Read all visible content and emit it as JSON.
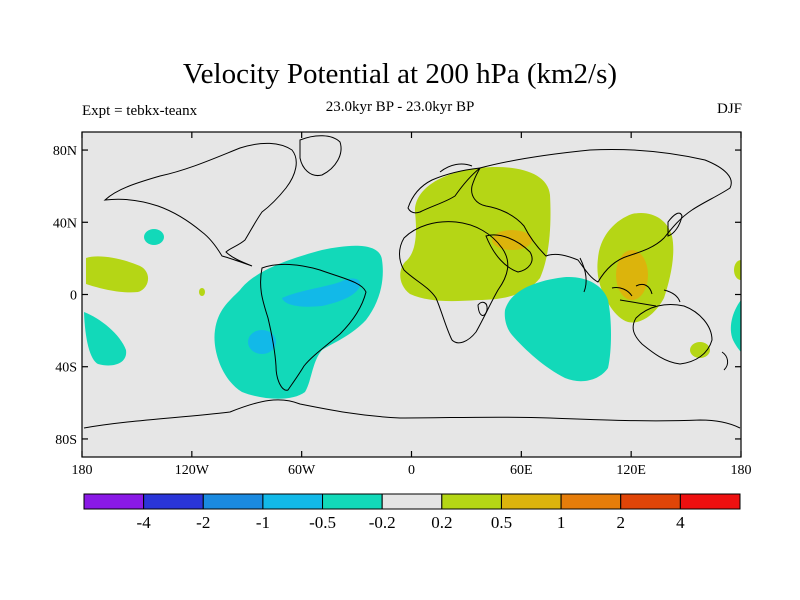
{
  "title": "Velocity Potential at 200 hPa (km2/s)",
  "subtitle_center": "23.0kyr BP - 23.0kyr BP",
  "subtitle_left": "Expt = tebkx-teanx",
  "subtitle_right": "DJF",
  "chart_data": {
    "type": "map",
    "projection": "cylindrical-equidistant",
    "variable": "Velocity Potential at 200 hPa",
    "units": "km2/s",
    "season": "DJF",
    "experiment": "tebkx-teanx",
    "xlim": [
      -180,
      180
    ],
    "ylim": [
      -90,
      90
    ],
    "x_ticks": [
      {
        "value": -180,
        "label": "180"
      },
      {
        "value": -120,
        "label": "120W"
      },
      {
        "value": -60,
        "label": "60W"
      },
      {
        "value": 0,
        "label": "0"
      },
      {
        "value": 60,
        "label": "60E"
      },
      {
        "value": 120,
        "label": "120E"
      },
      {
        "value": 180,
        "label": "180"
      }
    ],
    "y_ticks": [
      {
        "value": 80,
        "label": "80N"
      },
      {
        "value": 40,
        "label": "40N"
      },
      {
        "value": 0,
        "label": "0"
      },
      {
        "value": -40,
        "label": "40S"
      },
      {
        "value": -80,
        "label": "80S"
      }
    ],
    "colorbar": {
      "levels": [
        "-4",
        "-2",
        "-1",
        "-0.5",
        "-0.2",
        "0.2",
        "0.5",
        "1",
        "2",
        "4"
      ],
      "colors": [
        "#8a19e6",
        "#2a35d8",
        "#1a8ae0",
        "#12b9e8",
        "#12d9b9",
        "#e5e5e5",
        "#b5d615",
        "#dcb40c",
        "#e67d0a",
        "#e04508",
        "#ee1010"
      ]
    }
  }
}
